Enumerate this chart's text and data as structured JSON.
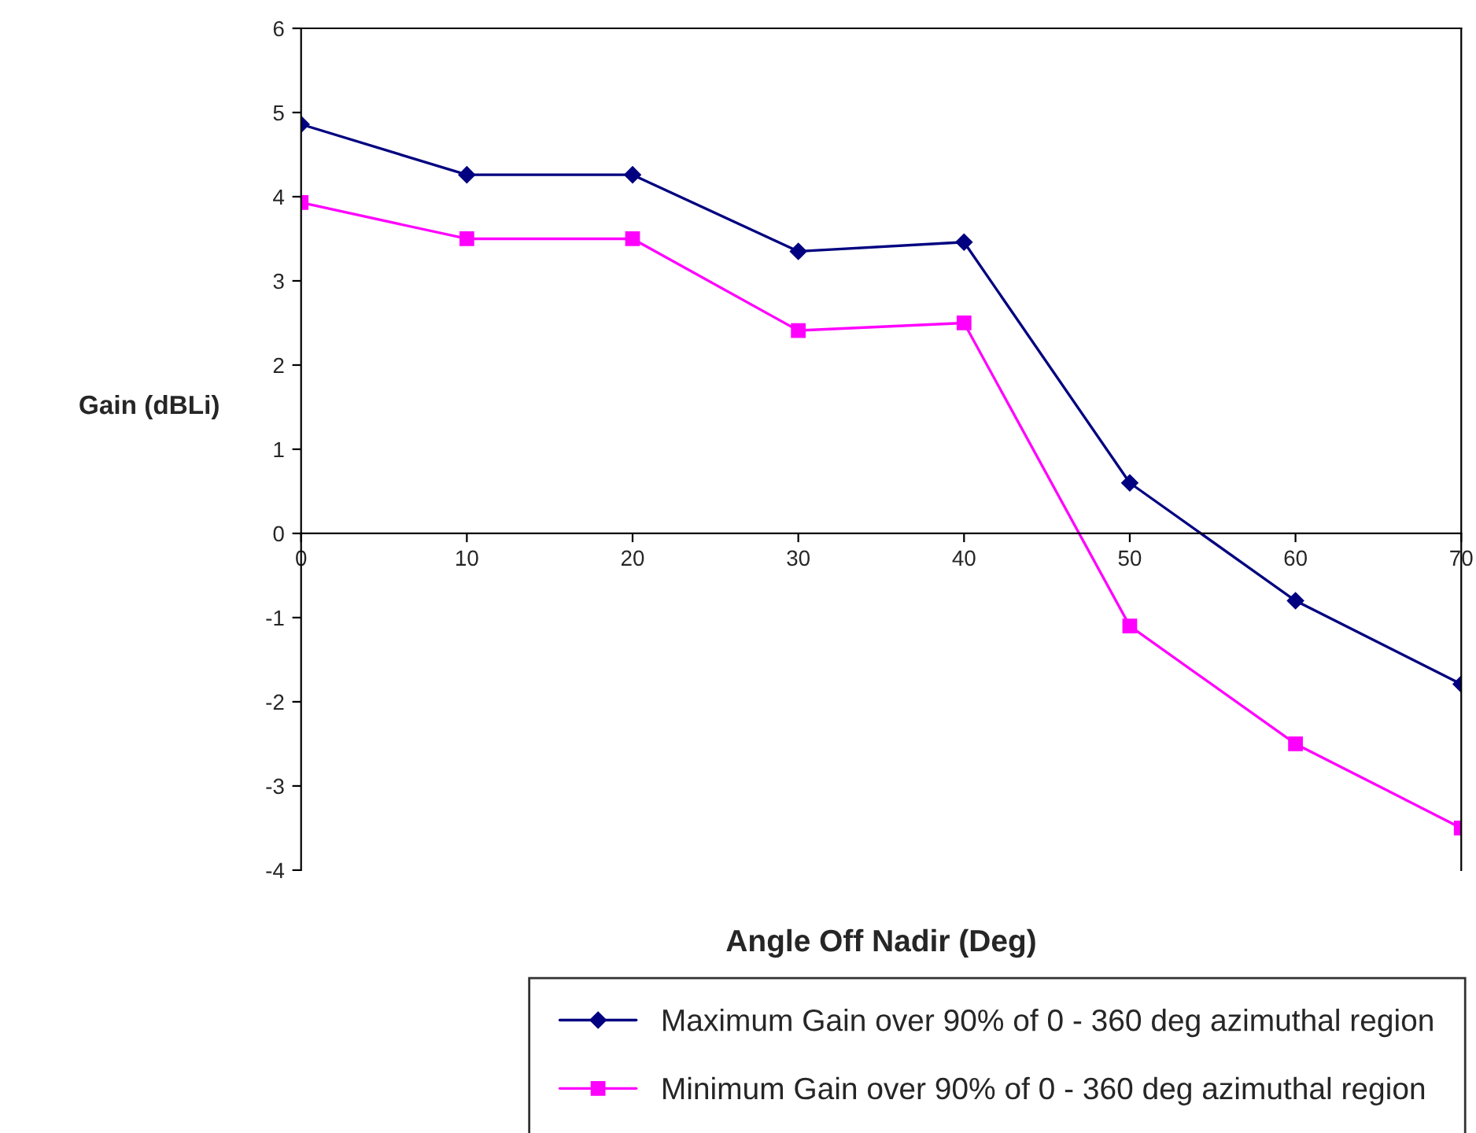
{
  "chart_data": {
    "type": "line",
    "xlabel": "Angle Off Nadir (Deg)",
    "ylabel": "Gain (dBLi)",
    "x": [
      0,
      10,
      20,
      30,
      40,
      50,
      60,
      70
    ],
    "series": [
      {
        "name": "Maximum Gain over 90% of 0 - 360 deg azimuthal region",
        "color": "#000080",
        "marker": "diamond",
        "values": [
          4.86,
          4.26,
          4.26,
          3.35,
          3.46,
          0.6,
          -0.8,
          -1.79
        ]
      },
      {
        "name": "Minimum Gain over 90% of 0 - 360 deg azimuthal region",
        "color": "#ff00ff",
        "marker": "square",
        "values": [
          3.93,
          3.5,
          3.5,
          2.41,
          2.5,
          -1.1,
          -2.5,
          -3.5
        ]
      }
    ],
    "xlim": [
      0,
      70
    ],
    "xticks": [
      0,
      10,
      20,
      30,
      40,
      50,
      60,
      70
    ],
    "ylim": [
      -4,
      6
    ],
    "yticks": [
      -4,
      -3,
      -2,
      -1,
      0,
      1,
      2,
      3,
      4,
      5,
      6
    ],
    "grid": false,
    "legend": "bottom",
    "line_style": "solid"
  }
}
